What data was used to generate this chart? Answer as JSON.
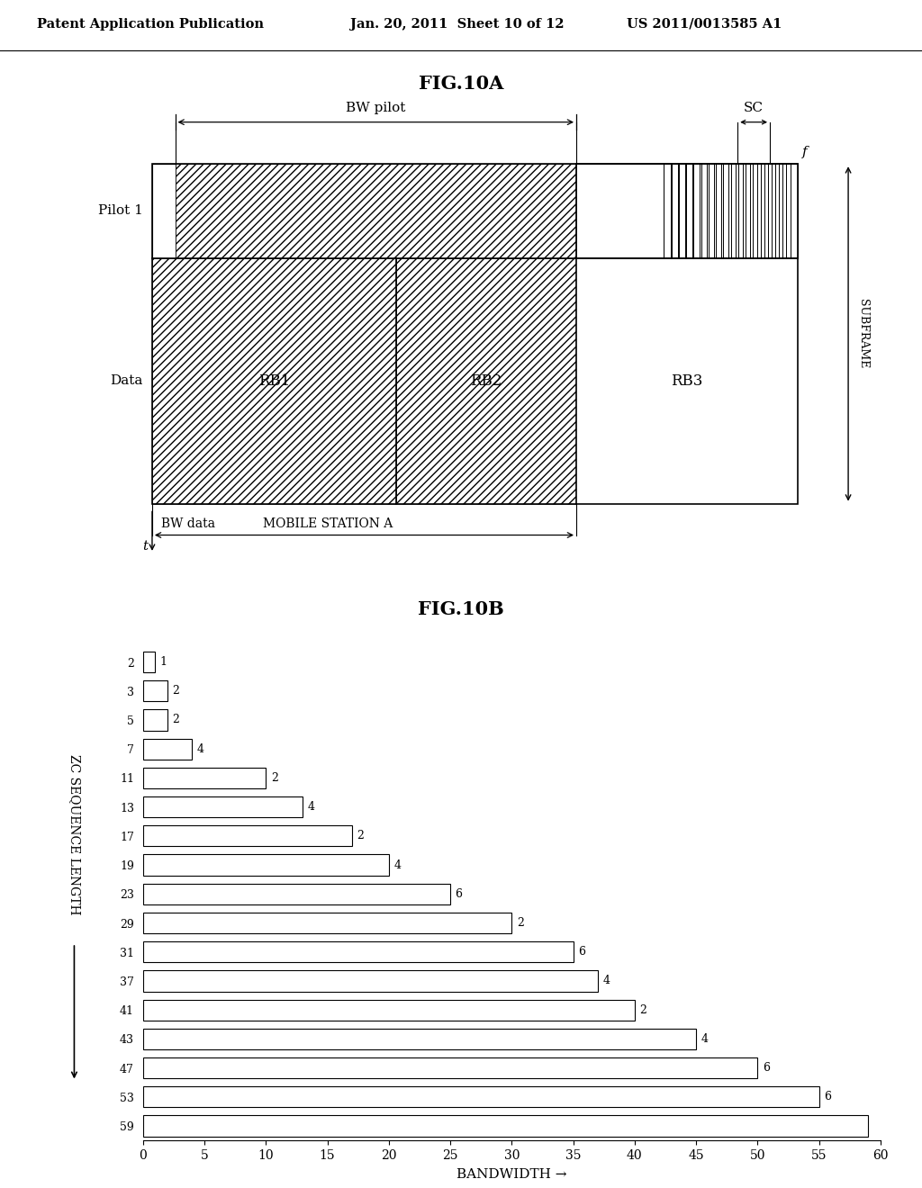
{
  "header_left": "Patent Application Publication",
  "header_mid": "Jan. 20, 2011  Sheet 10 of 12",
  "header_right": "US 2011/0013585 A1",
  "fig10a_title": "FIG.10A",
  "fig10b_title": "FIG.10B",
  "fig10b": {
    "zc_lengths": [
      2,
      3,
      5,
      7,
      11,
      13,
      17,
      19,
      23,
      29,
      31,
      37,
      41,
      43,
      47,
      53,
      59
    ],
    "bar_widths": [
      1,
      2,
      2,
      4,
      10,
      13,
      17,
      20,
      25,
      30,
      35,
      37,
      40,
      45,
      50,
      55,
      59
    ],
    "bar_labels": [
      "1",
      "2",
      "2",
      "4",
      "2",
      "4",
      "2",
      "4",
      "6",
      "2",
      "6",
      "4",
      "2",
      "4",
      "6",
      "6",
      ""
    ],
    "xlabel": "BANDWIDTH →",
    "ylabel": "ZC SEQUENCE LENGTH",
    "xlim": [
      0,
      60
    ],
    "xticks": [
      0,
      5,
      10,
      15,
      20,
      25,
      30,
      35,
      40,
      45,
      50,
      55,
      60
    ]
  },
  "background_color": "#ffffff",
  "line_color": "#000000"
}
